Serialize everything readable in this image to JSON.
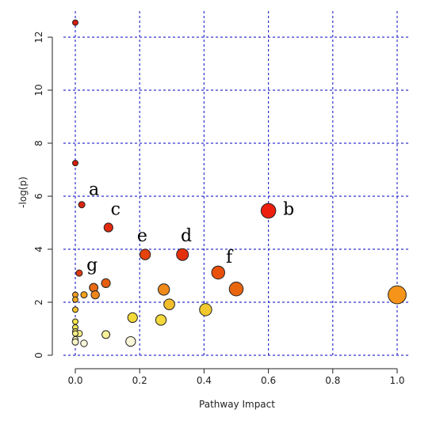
{
  "chart_data": {
    "type": "scatter",
    "xlabel": "Pathway Impact",
    "ylabel": "-log(p)",
    "xlim": [
      0,
      1.0
    ],
    "ylim": [
      0,
      12.5
    ],
    "x_ticks": [
      0.0,
      0.2,
      0.4,
      0.6,
      0.8,
      1.0
    ],
    "x_tick_labels": [
      "0.0",
      "0.2",
      "0.4",
      "0.6",
      "0.8",
      "1.0"
    ],
    "y_ticks": [
      0,
      2,
      4,
      6,
      8,
      10,
      12
    ],
    "y_tick_labels": [
      "0",
      "2",
      "4",
      "6",
      "8",
      "10",
      "12"
    ],
    "grid": true,
    "points": [
      {
        "x": 0.0,
        "y": 12.55,
        "size": 0.0,
        "color": "#d41c0c"
      },
      {
        "x": 0.0,
        "y": 7.25,
        "size": 0.0,
        "color": "#d41c0c"
      },
      {
        "x": 0.02,
        "y": 5.68,
        "size": 0.05,
        "color": "#d92510"
      },
      {
        "x": 0.6,
        "y": 5.45,
        "size": 0.55,
        "color": "#ee1e0e"
      },
      {
        "x": 0.103,
        "y": 4.82,
        "size": 0.2,
        "color": "#e3290e"
      },
      {
        "x": 0.217,
        "y": 3.8,
        "size": 0.3,
        "color": "#e5420c"
      },
      {
        "x": 0.333,
        "y": 3.8,
        "size": 0.38,
        "color": "#e5300c"
      },
      {
        "x": 0.444,
        "y": 3.12,
        "size": 0.45,
        "color": "#e8500c"
      },
      {
        "x": 0.5,
        "y": 2.5,
        "size": 0.5,
        "color": "#e9660e"
      },
      {
        "x": 1.0,
        "y": 2.28,
        "size": 0.75,
        "color": "#f59418"
      },
      {
        "x": 0.012,
        "y": 3.1,
        "size": 0.05,
        "color": "#dd3a0f"
      },
      {
        "x": 0.095,
        "y": 2.72,
        "size": 0.2,
        "color": "#e55d10"
      },
      {
        "x": 0.057,
        "y": 2.55,
        "size": 0.18,
        "color": "#e86a13"
      },
      {
        "x": 0.062,
        "y": 2.28,
        "size": 0.16,
        "color": "#ef861a"
      },
      {
        "x": 0.275,
        "y": 2.48,
        "size": 0.35,
        "color": "#ef8a1b"
      },
      {
        "x": 0.027,
        "y": 2.28,
        "size": 0.05,
        "color": "#f2a020"
      },
      {
        "x": 0.0,
        "y": 2.28,
        "size": 0.0,
        "color": "#f39d20"
      },
      {
        "x": 0.0,
        "y": 2.1,
        "size": 0.0,
        "color": "#f3a723"
      },
      {
        "x": 0.292,
        "y": 1.92,
        "size": 0.32,
        "color": "#f1bd2a"
      },
      {
        "x": 0.0,
        "y": 1.72,
        "size": 0.0,
        "color": "#f2c32d"
      },
      {
        "x": 0.405,
        "y": 1.72,
        "size": 0.4,
        "color": "#f1c82d"
      },
      {
        "x": 0.178,
        "y": 1.42,
        "size": 0.25,
        "color": "#f2d838"
      },
      {
        "x": 0.266,
        "y": 1.33,
        "size": 0.3,
        "color": "#f4d83c"
      },
      {
        "x": 0.0,
        "y": 1.27,
        "size": 0.0,
        "color": "#f2e14a"
      },
      {
        "x": 0.0,
        "y": 1.05,
        "size": 0.0,
        "color": "#f2e658"
      },
      {
        "x": 0.0,
        "y": 0.9,
        "size": 0.0,
        "color": "#f3ea68"
      },
      {
        "x": 0.012,
        "y": 0.82,
        "size": 0.05,
        "color": "#f5ee85"
      },
      {
        "x": 0.0,
        "y": 0.82,
        "size": 0.0,
        "color": "#f5ee85"
      },
      {
        "x": 0.095,
        "y": 0.78,
        "size": 0.14,
        "color": "#f7f19a"
      },
      {
        "x": 0.0,
        "y": 0.6,
        "size": 0.0,
        "color": "#f7f2b0"
      },
      {
        "x": 0.0,
        "y": 0.5,
        "size": 0.05,
        "color": "#f7f4c4"
      },
      {
        "x": 0.027,
        "y": 0.45,
        "size": 0.07,
        "color": "#f8f5d8"
      },
      {
        "x": 0.172,
        "y": 0.52,
        "size": 0.25,
        "color": "#f8f5d8"
      }
    ],
    "annotations": [
      {
        "label": "a",
        "x": 0.058,
        "y": 6.05
      },
      {
        "label": "b",
        "x": 0.663,
        "y": 5.3
      },
      {
        "label": "c",
        "x": 0.125,
        "y": 5.3
      },
      {
        "label": "d",
        "x": 0.345,
        "y": 4.3
      },
      {
        "label": "e",
        "x": 0.208,
        "y": 4.3
      },
      {
        "label": "f",
        "x": 0.478,
        "y": 3.5
      },
      {
        "label": "g",
        "x": 0.052,
        "y": 3.2
      }
    ]
  }
}
